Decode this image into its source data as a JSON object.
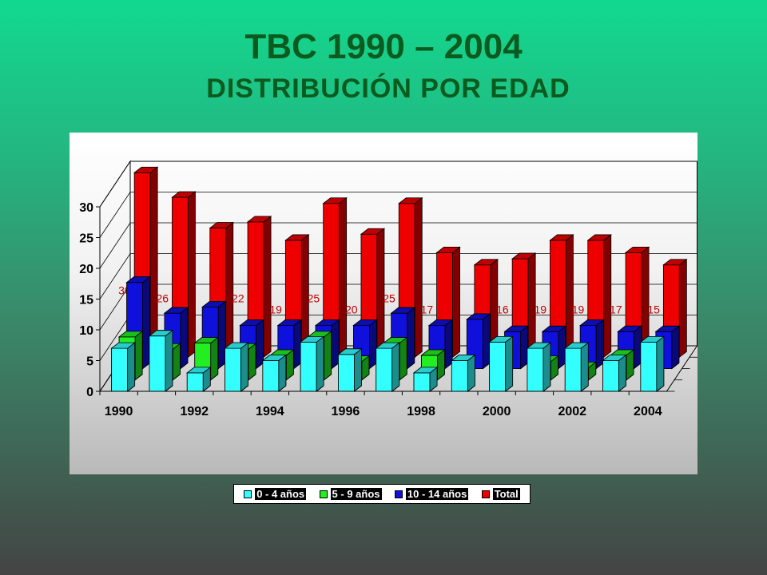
{
  "title": "TBC 1990 – 2004",
  "subtitle": "DISTRIBUCIÓN POR EDAD",
  "chart_data": {
    "type": "bar",
    "categories": [
      "1990",
      "1991",
      "1992",
      "1993",
      "1994",
      "1995",
      "1996",
      "1997",
      "1998",
      "1999",
      "2000",
      "2001",
      "2002",
      "2003",
      "2004"
    ],
    "x_tick_labels": [
      "1990",
      "1992",
      "1994",
      "1996",
      "1998",
      "2000",
      "2002",
      "2004"
    ],
    "ylim": [
      0,
      30
    ],
    "y_ticks": [
      0,
      5,
      10,
      15,
      20,
      25,
      30
    ],
    "legend_position": "bottom",
    "series": [
      {
        "name": "0 - 4 años",
        "color": "#33ffff",
        "values": [
          7,
          9,
          3,
          7,
          5,
          8,
          6,
          7,
          3,
          5,
          8,
          7,
          7,
          5,
          8
        ]
      },
      {
        "name": "5 - 9 años",
        "color": "#22ee22",
        "values": [
          7,
          5,
          6,
          5,
          4,
          7,
          3,
          6,
          4,
          0,
          0,
          3,
          2,
          4,
          0
        ]
      },
      {
        "name": "10 - 14 años",
        "color": "#1010dd",
        "values": [
          14,
          9,
          10,
          7,
          7,
          7,
          7,
          9,
          7,
          8,
          6,
          6,
          7,
          6,
          6
        ]
      },
      {
        "name": "Total",
        "color": "#ee0000",
        "values": [
          30,
          26,
          21,
          22,
          19,
          25,
          20,
          25,
          17,
          15,
          16,
          19,
          19,
          17,
          15
        ]
      }
    ],
    "data_labels": [
      "30",
      "26",
      "",
      "22",
      "19",
      "25",
      "20",
      "25",
      "17",
      "",
      "16",
      "19",
      "19",
      "17",
      "15"
    ]
  }
}
